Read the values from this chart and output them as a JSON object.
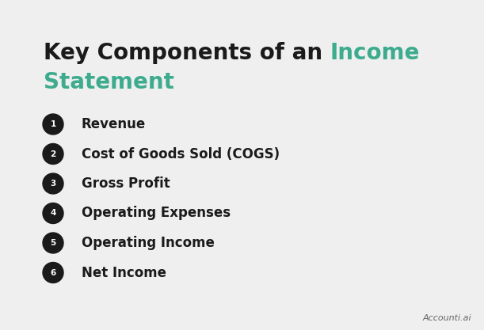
{
  "title_black": "Key Components of an ",
  "title_green_part1": "Income",
  "title_green_part2": "Statement",
  "title_color_black": "#1a1a1a",
  "title_color_green": "#3dab8e",
  "background_color": "#efefef",
  "items": [
    {
      "number": "1",
      "label": "Revenue"
    },
    {
      "number": "2",
      "label": "Cost of Goods Sold (COGS)"
    },
    {
      "number": "3",
      "label": "Gross Profit"
    },
    {
      "number": "4",
      "label": "Operating Expenses"
    },
    {
      "number": "5",
      "label": "Operating Income"
    },
    {
      "number": "6",
      "label": "Net Income"
    }
  ],
  "circle_color": "#1a1a1a",
  "circle_text_color": "#ffffff",
  "item_text_color": "#1a1a1a",
  "watermark": "Accounti.ai",
  "watermark_color": "#666666",
  "title_fontsize": 20,
  "item_fontsize": 12,
  "circle_fontsize": 7.5,
  "watermark_fontsize": 8
}
